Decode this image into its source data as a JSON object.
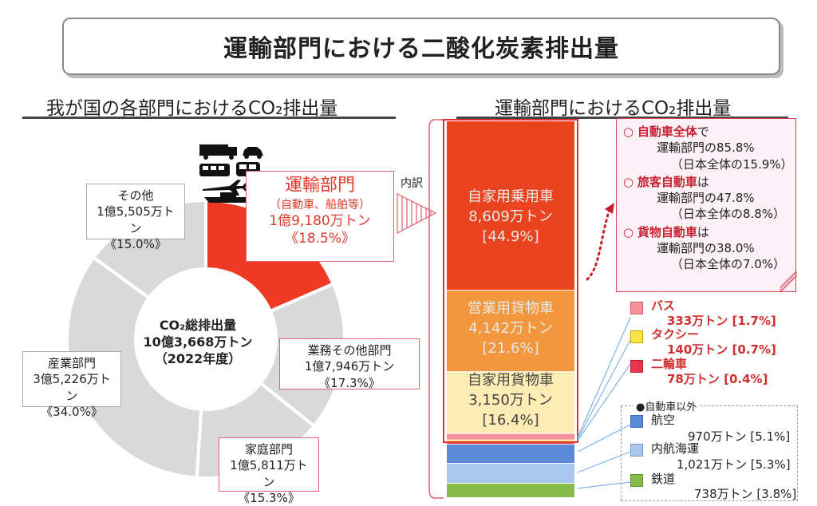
{
  "header": {
    "title": "運輸部門における二酸化炭素排出量"
  },
  "left": {
    "title": "我が国の各部門におけるCO₂排出量"
  },
  "right": {
    "title": "運輸部門におけるCO₂排出量"
  },
  "colors": {
    "transport": "#ef3a23",
    "other_sectors": "#d9d9d9",
    "passenger_car": "#e9431f",
    "business_freight": "#f2973d",
    "private_freight": "#fdecb4",
    "aviation": "#5b8ad6",
    "coastal": "#a9c6ef",
    "rail": "#86bb4a",
    "bus": "#f2939a",
    "taxi": "#fbe34a",
    "motorcycle": "#e8334a"
  },
  "chart_data": [
    {
      "type": "pie",
      "title": "我が国の各部門におけるCO₂排出量",
      "center": {
        "line1": "CO₂総排出量",
        "line2": "10億3,668万トン",
        "line3": "（2022年度）"
      },
      "slices": [
        {
          "name": "運輸部門",
          "note": "（自動車、船舶等）",
          "amount": "1億9,180万トン",
          "share": "《18.5%》",
          "value": 18.5
        },
        {
          "name": "業務その他部門",
          "amount": "1億7,946万トン",
          "share": "《17.3%》",
          "value": 17.3
        },
        {
          "name": "家庭部門",
          "amount": "1億5,811万トン",
          "share": "《15.3%》",
          "value": 15.3
        },
        {
          "name": "産業部門",
          "amount": "3億5,226万トン",
          "share": "《34.0%》",
          "value": 34.0
        },
        {
          "name": "その他",
          "amount": "1億5,505万トン",
          "share": "《15.0%》",
          "value": 15.0
        }
      ],
      "breakdown_label": "内訳"
    },
    {
      "type": "bar",
      "title": "運輸部門におけるCO₂排出量",
      "stacked": true,
      "segments": [
        {
          "name": "自家用乗用車",
          "amount": "8,609万トン",
          "share": "[44.9%]",
          "value": 44.9
        },
        {
          "name": "営業用貨物車",
          "amount": "4,142万トン",
          "share": "[21.6%]",
          "value": 21.6
        },
        {
          "name": "自家用貨物車",
          "amount": "3,150万トン",
          "share": "[16.4%]",
          "value": 16.4
        },
        {
          "name": "バス",
          "amount": "333万トン",
          "share": "[1.7%]",
          "value": 1.7
        },
        {
          "name": "タクシー",
          "amount": "140万トン",
          "share": "[0.7%]",
          "value": 0.7
        },
        {
          "name": "二輪車",
          "amount": "78万トン",
          "share": "[0.4%]",
          "value": 0.4
        },
        {
          "name": "航空",
          "amount": "970万トン",
          "share": "[5.1%]",
          "value": 5.1
        },
        {
          "name": "内航海運",
          "amount": "1,021万トン",
          "share": "[5.3%]",
          "value": 5.3
        },
        {
          "name": "鉄道",
          "amount": "738万トン",
          "share": "[3.8%]",
          "value": 3.8
        }
      ],
      "other_than_cars_label": "●自動車以外"
    }
  ],
  "notes": [
    {
      "head": "自動車全体",
      "tail": "で",
      "line2": "運輸部門の85.8%",
      "line3": "（日本全体の15.9%）"
    },
    {
      "head": "旅客自動車",
      "tail": "は",
      "line2": "運輸部門の47.8%",
      "line3": "（日本全体の8.8%）"
    },
    {
      "head": "貨物自動車",
      "tail": "は",
      "line2": "運輸部門の38.0%",
      "line3": "（日本全体の7.0%）"
    }
  ],
  "icons": [
    "truck-icon",
    "car-icon",
    "bus-icon",
    "train-icon",
    "airplane-icon",
    "ship-icon"
  ]
}
